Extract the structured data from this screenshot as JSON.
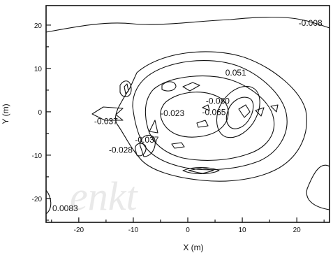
{
  "chart_data": {
    "type": "contour",
    "title": "",
    "xlabel": "X (m)",
    "ylabel": "Y (m)",
    "xlim": [
      -26,
      26
    ],
    "ylim": [
      -25.5,
      24.5
    ],
    "xticks": [
      -20,
      -10,
      0,
      10,
      20
    ],
    "yticks": [
      -20,
      -10,
      0,
      10,
      20
    ],
    "grid": false,
    "contour_labels": [
      {
        "text": "-0.008",
        "x": 22.5,
        "y": 20.5
      },
      {
        "text": "0.051",
        "x": 8.8,
        "y": 9.0
      },
      {
        "text": "-0.080",
        "x": 5.5,
        "y": 2.5
      },
      {
        "text": "-0.023",
        "x": -2.8,
        "y": -0.3
      },
      {
        "text": "-0.065",
        "x": 4.8,
        "y": -0.1
      },
      {
        "text": "-0.037",
        "x": -15.0,
        "y": -2.2
      },
      {
        "text": "-0.037",
        "x": -7.5,
        "y": -6.5
      },
      {
        "text": "-0.028",
        "x": -12.3,
        "y": -8.8
      },
      {
        "text": "0.0083",
        "x": -22.5,
        "y": -22.3
      }
    ]
  },
  "watermark": "enkt"
}
